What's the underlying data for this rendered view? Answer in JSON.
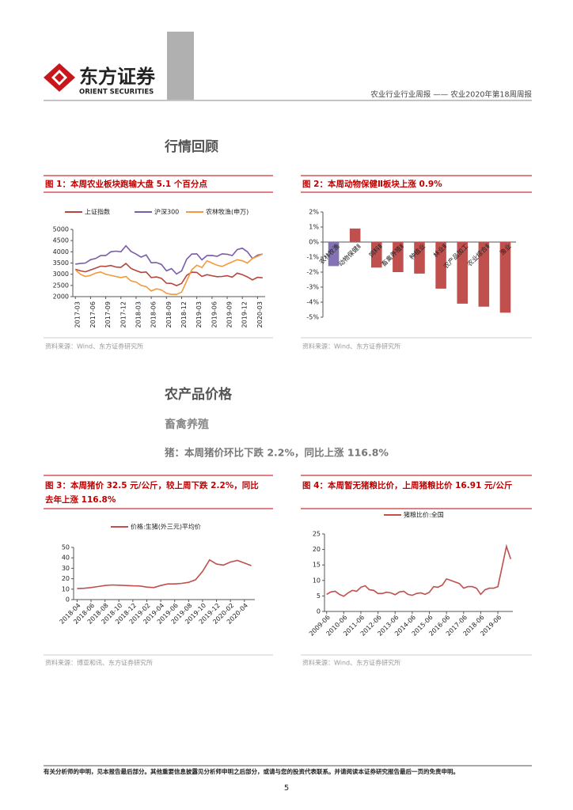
{
  "header": {
    "logo_cn": "东方证券",
    "logo_en": "ORIENT SECURITIES",
    "report": "农业行业行业周报 —— 农业2020年第18周周报"
  },
  "section1": "行情回顾",
  "section2": "农产品价格",
  "subsection": "畜禽养殖",
  "highlight": "猪：本周猪价环比下跌 2.2%，同比上涨 116.8%",
  "figures": [
    {
      "title": "图 1：本周农业板块跑输大盘 5.1 个百分点",
      "source": "资料来源：Wind、东方证券研究所",
      "chart_data": {
        "type": "line",
        "categories": [
          "2017-03",
          null,
          null,
          "2017-06",
          null,
          null,
          "2017-09",
          null,
          null,
          "2017-12",
          null,
          null,
          "2018-03",
          null,
          null,
          "2018-06",
          null,
          null,
          "2018-09",
          null,
          null,
          "2018-12",
          null,
          null,
          "2019-03",
          null,
          null,
          "2019-06",
          null,
          null,
          "2019-09",
          null,
          null,
          "2019-12",
          null,
          null,
          "2020-03",
          null
        ],
        "series": [
          {
            "name": "上证指数",
            "color": "#b5453d",
            "values": [
              3220,
              3150,
              3110,
              3190,
              3270,
              3360,
              3350,
              3390,
              3320,
              3310,
              3480,
              3260,
              3160,
              3080,
              3100,
              2850,
              2880,
              2820,
              2600,
              2590,
              2490,
              2590,
              2950,
              3090,
              3080,
              2900,
              2980,
              2930,
              2890,
              2900,
              2930,
              2870,
              3050,
              2980,
              2880,
              2750,
              2860,
              2840
            ]
          },
          {
            "name": "沪深300",
            "color": "#7a5ca8",
            "values": [
              3450,
              3480,
              3500,
              3650,
              3700,
              3830,
              3830,
              4000,
              4030,
              4000,
              4270,
              4020,
              3900,
              3760,
              3860,
              3510,
              3520,
              3440,
              3150,
              3250,
              3010,
              3150,
              3670,
              3900,
              3910,
              3640,
              3830,
              3840,
              3800,
              3910,
              3890,
              3830,
              4100,
              4160,
              4000,
              3700,
              3850,
              3900
            ]
          },
          {
            "name": "农林牧渔(申万)",
            "color": "#f3993a",
            "values": [
              3200,
              3000,
              2900,
              2950,
              3050,
              3100,
              3000,
              2950,
              2900,
              2850,
              2900,
              2700,
              2650,
              2500,
              2450,
              2250,
              2350,
              2300,
              2150,
              2100,
              2100,
              2200,
              2700,
              3200,
              3400,
              3300,
              3600,
              3500,
              3400,
              3350,
              3450,
              3550,
              3650,
              3600,
              3500,
              3700,
              3800,
              3900
            ]
          }
        ],
        "ylim": [
          2000,
          5000
        ],
        "yticks": [
          2000,
          2500,
          3000,
          3500,
          4000,
          4500,
          5000
        ]
      }
    },
    {
      "title": "图 2：本周动物保健Ⅱ板块上涨 0.9%",
      "source": "资料来源：Wind、东方证券研究所",
      "chart_data": {
        "type": "bar",
        "categories": [
          "农林牧渔",
          "动物保健Ⅱ",
          "饲料Ⅱ",
          "畜禽养殖Ⅱ",
          "种植业",
          "林业Ⅱ",
          "农产品加工",
          "农业综合Ⅱ",
          "渔业"
        ],
        "values": [
          -1.6,
          0.9,
          -1.7,
          -2.0,
          -2.1,
          -3.1,
          -4.1,
          -4.3,
          -4.7
        ],
        "colors": [
          "#8373b5",
          "#c0504d",
          "#c0504d",
          "#c0504d",
          "#c0504d",
          "#c0504d",
          "#c0504d",
          "#c0504d",
          "#c0504d"
        ],
        "ylim": [
          -5,
          2
        ],
        "yticks": [
          {
            "value": 2,
            "label": "2%"
          },
          {
            "value": 1,
            "label": "1%"
          },
          {
            "value": 0,
            "label": "0%"
          },
          {
            "value": -1,
            "label": "-1%"
          },
          {
            "value": -2,
            "label": "-2%"
          },
          {
            "value": -3,
            "label": "-3%"
          },
          {
            "value": -4,
            "label": "-4%"
          },
          {
            "value": -5,
            "label": "-5%"
          }
        ]
      }
    },
    {
      "title": "图 3：本周猪价 32.5 元/公斤，较上周下跌 2.2%，同比去年上涨 116.8%",
      "source": "资料来源：博亚和讯、东方证券研究所",
      "chart_data": {
        "type": "line",
        "categories": [
          "2018-04",
          null,
          "2018-06",
          null,
          "2018-08",
          null,
          "2018-10",
          null,
          "2018-12",
          null,
          "2019-02",
          null,
          "2019-04",
          null,
          "2019-06",
          null,
          "2019-08",
          null,
          "2019-10",
          null,
          "2019-12",
          null,
          "2020-02",
          null,
          "2020-04",
          null
        ],
        "series": [
          {
            "name": "价格:生猪(外三元)平均价",
            "color": "#c0504d",
            "values": [
              10.5,
              10.8,
              11.5,
              12.5,
              13.5,
              14,
              13.8,
              13.5,
              13.2,
              13,
              12,
              11.5,
              13.5,
              15,
              15,
              15.5,
              16.5,
              19,
              27,
              38,
              34,
              33,
              36,
              37.5,
              35,
              32.5
            ]
          }
        ],
        "ylim": [
          0,
          50
        ],
        "yticks": [
          0,
          10,
          20,
          30,
          40,
          50
        ]
      }
    },
    {
      "title": "图 4：本周暂无猪粮比价，上周猪粮比价 16.91 元/公斤",
      "source": "资料来源：Wind、东方证券研究所",
      "chart_data": {
        "type": "line",
        "categories": [
          "2009-06",
          null,
          null,
          null,
          "2010-06",
          null,
          null,
          null,
          "2011-06",
          null,
          null,
          null,
          "2012-06",
          null,
          null,
          null,
          "2013-06",
          null,
          null,
          null,
          "2014-06",
          null,
          null,
          null,
          "2015-06",
          null,
          null,
          null,
          "2016-06",
          null,
          null,
          null,
          "2017-06",
          null,
          null,
          null,
          "2018-06",
          null,
          null,
          null,
          "2019-06",
          null,
          null,
          null
        ],
        "series": [
          {
            "name": "猪粮比价:全国",
            "color": "#c0504d",
            "values": [
              5.5,
              6.3,
              6.5,
              5.5,
              4.9,
              6.0,
              6.8,
              6.5,
              7.8,
              8.3,
              7.0,
              6.8,
              5.8,
              5.8,
              6.2,
              6.0,
              5.4,
              6.3,
              6.5,
              5.5,
              5.2,
              5.8,
              6.0,
              5.5,
              6.2,
              8.0,
              7.8,
              8.5,
              10.5,
              10.0,
              9.5,
              9.0,
              7.5,
              8.0,
              8.0,
              7.5,
              5.5,
              7.0,
              7.5,
              7.5,
              8.0,
              14.5,
              21.0,
              16.9
            ]
          }
        ],
        "ylim": [
          0,
          25
        ],
        "yticks": [
          0,
          5,
          10,
          15,
          20,
          25
        ]
      }
    }
  ],
  "footer": {
    "disclaimer": "有关分析师的申明，见本报告最后部分。其他重要信息披露见分析师申明之后部分，或请与您的投资代表联系。并请阅读本证券研究报告最后一页的免责申明。",
    "page": "5"
  }
}
